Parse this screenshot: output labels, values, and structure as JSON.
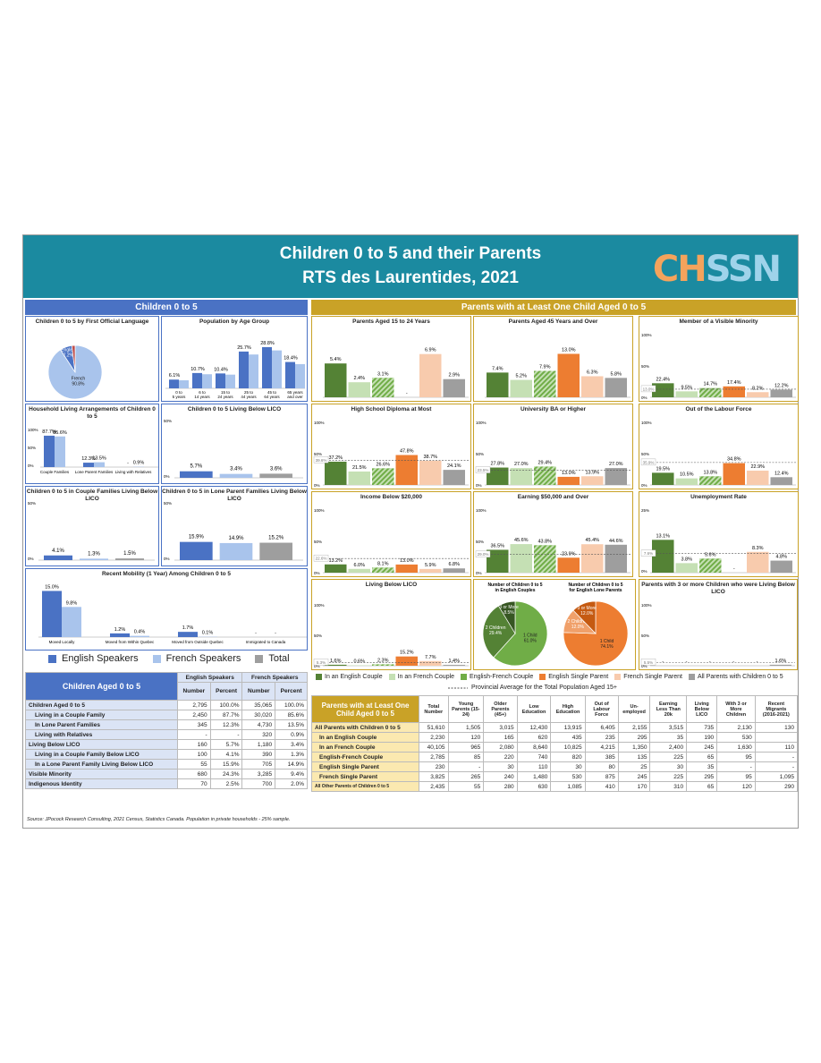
{
  "header": {
    "title": "Children 0 to 5 and their Parents",
    "subtitle": "RTS des Laurentides, 2021",
    "logo": "CHSSN"
  },
  "sections": {
    "left": "Children 0 to 5",
    "right": "Parents with at Least One Child Aged 0 to 5"
  },
  "colors": {
    "english": "#4a72c4",
    "french": "#a9c4ec",
    "total": "#9e9e9e",
    "eng_couple": "#548235",
    "fr_couple": "#c5e0b4",
    "ef_couple": "#70ad47",
    "eng_single": "#ed7d31",
    "fr_single": "#f8cbad",
    "all": "#9e9e9e"
  },
  "chart_data": [
    {
      "id": "lang",
      "type": "pie",
      "title": "Children 0 to 5 by First Official Language",
      "labels": [
        "French",
        "English",
        "Other"
      ],
      "values": [
        90.8,
        7.2,
        2.0
      ],
      "label_text": [
        "French\n90.8%",
        "English\n7.2%",
        "Other 2.0%"
      ]
    },
    {
      "id": "age",
      "type": "bar",
      "title": "Population by Age Group",
      "categories": [
        "0 to 5 years",
        "6 to 14 years",
        "15 to 24 years",
        "25 to 44 years",
        "45 to 64 years",
        "65 years and over"
      ],
      "values_eng": [
        6.1,
        10.7,
        10.4,
        25.7,
        28.8,
        18.4
      ]
    },
    {
      "id": "hla",
      "type": "bar",
      "title": "Household Living Arrangements of Children 0 to 5",
      "categories": [
        "Couple Families",
        "Lone Parent Families",
        "Living with Relatives"
      ],
      "series": [
        {
          "name": "English Speakers",
          "values": [
            87.7,
            12.3,
            null
          ],
          "labels": [
            "87.7%",
            "12.3%",
            "-"
          ]
        },
        {
          "name": "French Speakers",
          "values": [
            85.6,
            13.5,
            0.9
          ],
          "labels": [
            "85.6%",
            "13.5%",
            "0.9%"
          ]
        }
      ],
      "ticks": [
        "100%",
        "50%",
        "0%"
      ]
    },
    {
      "id": "lico",
      "type": "bar",
      "title": "Children 0 to 5 Living Below LICO",
      "values": [
        5.7,
        3.4,
        3.6
      ],
      "labels": [
        "5.7%",
        "3.4%",
        "3.6%"
      ],
      "ticks": [
        "50%",
        "0%"
      ]
    },
    {
      "id": "cf_lico",
      "type": "bar",
      "title": "Children 0 to 5 in Couple Families Living Below LICO",
      "values": [
        4.1,
        1.3,
        1.5
      ],
      "labels": [
        "4.1%",
        "1.3%",
        "1.5%"
      ],
      "ticks": [
        "50%",
        "0%"
      ]
    },
    {
      "id": "lp_lico",
      "type": "bar",
      "title": "Children 0 to 5 in Lone Parent Families Living Below LICO",
      "values": [
        15.9,
        14.9,
        15.2
      ],
      "labels": [
        "15.9%",
        "14.9%",
        "15.2%"
      ],
      "ticks": [
        "50%",
        "0%"
      ]
    },
    {
      "id": "mob",
      "type": "bar",
      "title": "Recent Mobility (1 Year) Among Children 0 to 5",
      "categories": [
        "Moved Locally",
        "Moved from Within Quebec",
        "Moved from Outside Quebec",
        "Immigrated to Canada"
      ],
      "series": [
        {
          "name": "English Speakers",
          "values": [
            15.0,
            1.2,
            1.7,
            null
          ],
          "labels": [
            "15.0%",
            "1.2%",
            "1.7%",
            "-"
          ]
        },
        {
          "name": "French Speakers",
          "values": [
            9.8,
            0.4,
            0.1,
            null
          ],
          "labels": [
            "9.8%",
            "0.4%",
            "0.1%",
            "-"
          ]
        }
      ]
    }
  ],
  "parent_charts": [
    {
      "title": "Parents Aged 15 to 24 Years",
      "values": [
        5.4,
        2.4,
        3.1,
        null,
        6.9,
        2.9
      ],
      "labels": [
        "5.4%",
        "2.4%",
        "3.1%",
        "-",
        "6.9%",
        "2.9%"
      ],
      "max": 8,
      "ticks": [],
      "avg": null
    },
    {
      "title": "Parents Aged 45 Years and Over",
      "values": [
        7.4,
        5.2,
        7.9,
        13.0,
        6.3,
        5.8
      ],
      "labels": [
        "7.4%",
        "5.2%",
        "7.9%",
        "13.0%",
        "6.3%",
        "5.8%"
      ],
      "max": 15,
      "ticks": [],
      "avg": null
    },
    {
      "title": "Member of a Visible Minority",
      "values": [
        22.4,
        9.5,
        14.7,
        17.4,
        8.2,
        12.2
      ],
      "labels": [
        "22.4%",
        "9.5%",
        "14.7%",
        "17.4%",
        "8.2%",
        "12.2%"
      ],
      "max": 100,
      "ticks": [
        "100%",
        "50%",
        "0%"
      ],
      "avg": 13.0,
      "avg_label": "13.0%"
    },
    {
      "title": "High School Diploma at Most",
      "values": [
        37.2,
        21.5,
        26.6,
        47.8,
        38.7,
        24.1
      ],
      "labels": [
        "37.2%",
        "21.5%",
        "26.6%",
        "47.8%",
        "38.7%",
        "24.1%"
      ],
      "max": 100,
      "ticks": [
        "100%",
        "50%",
        "0%"
      ],
      "avg": 39.6,
      "avg_label": "39.6%"
    },
    {
      "title": "University BA or Higher",
      "values": [
        27.8,
        27.0,
        29.4,
        13.0,
        13.9,
        27.0
      ],
      "labels": [
        "27.8%",
        "27.0%",
        "29.4%",
        "13.0%",
        "13.9%",
        "27.0%"
      ],
      "max": 100,
      "ticks": [
        "100%",
        "50%",
        "0%"
      ],
      "avg": 23.5,
      "avg_label": "23.5%"
    },
    {
      "title": "Out of the Labour Force",
      "values": [
        19.5,
        10.5,
        13.8,
        34.8,
        22.9,
        12.4
      ],
      "labels": [
        "19.5%",
        "10.5%",
        "13.8%",
        "34.8%",
        "22.9%",
        "12.4%"
      ],
      "max": 100,
      "ticks": [
        "100%",
        "50%",
        "0%"
      ],
      "avg": 35.9,
      "avg_label": "35.9%"
    },
    {
      "title": "Income Below $20,000",
      "values": [
        13.2,
        6.0,
        8.1,
        13.0,
        5.9,
        6.8
      ],
      "labels": [
        "13.2%",
        "6.0%",
        "8.1%",
        "13.0%",
        "5.9%",
        "6.8%"
      ],
      "max": 100,
      "ticks": [
        "100%",
        "50%",
        "0%"
      ],
      "avg": 22.6,
      "avg_label": "22.6%"
    },
    {
      "title": "Earning $50,000 and Over",
      "values": [
        36.5,
        45.6,
        43.8,
        23.9,
        45.4,
        44.6
      ],
      "labels": [
        "36.5%",
        "45.6%",
        "43.8%",
        "23.9%",
        "45.4%",
        "44.6%"
      ],
      "max": 100,
      "ticks": [
        "100%",
        "50%",
        "0%"
      ],
      "avg": 29.0,
      "avg_label": "29.0%"
    },
    {
      "title": "Unemployment Rate",
      "values": [
        13.1,
        3.8,
        5.6,
        null,
        8.3,
        4.8
      ],
      "labels": [
        "13.1%",
        "3.8%",
        "5.6%",
        "-",
        "8.3%",
        "4.8%"
      ],
      "max": 25,
      "ticks": [
        "25%",
        "0%"
      ],
      "avg": 7.6,
      "avg_label": "7.6%"
    },
    {
      "title": "Living Below LICO",
      "values": [
        1.6,
        0.6,
        2.3,
        15.2,
        7.7,
        1.4
      ],
      "labels": [
        "1.6%",
        "0.6%",
        "2.3%",
        "15.2%",
        "7.7%",
        "1.4%"
      ],
      "max": 100,
      "ticks": [
        "100%",
        "50%",
        "0%"
      ],
      "avg": 5.3,
      "avg_label": "5.3%"
    },
    {
      "title": "Parents with 3 or more Children who were Living Below LICO",
      "values": [
        null,
        null,
        null,
        null,
        null,
        1.6
      ],
      "labels": [
        "-",
        "-",
        "-",
        "-",
        "-",
        "1.6%"
      ],
      "max": 100,
      "ticks": [
        "100%",
        "50%",
        "0%"
      ],
      "avg": 5.5,
      "avg_label": "5.5%"
    }
  ],
  "pies2": [
    {
      "title": "Number of Children 0 to 5 in English Couples",
      "values": [
        61.0,
        29.4,
        8.5
      ],
      "labels": [
        "1 Child\n61.0%",
        "2 Children\n29.4%",
        "3 or More\n8.5%"
      ]
    },
    {
      "title": "Number of Children 0 to 5 for English Lone Parents",
      "values": [
        74.1,
        12.0,
        12.0
      ],
      "labels": [
        "1 Child\n74.1%",
        "2 Children\n12.0%",
        "3 or More\n12.0%"
      ]
    }
  ],
  "legend_left": [
    "English Speakers",
    "French Speakers",
    "Total"
  ],
  "legend_right": [
    "In an English Couple",
    "In an French Couple",
    "English-French Couple",
    "English Single Parent",
    "French Single Parent",
    "All Parents with Children 0 to 5"
  ],
  "legend_avg": "Provincial Average for the Total Population Aged 15+",
  "table_left": {
    "title": "Children Aged 0 to 5",
    "groups": [
      "English Speakers",
      "French Speakers"
    ],
    "cols": [
      "Number",
      "Percent",
      "Number",
      "Percent"
    ],
    "rows": [
      [
        "Children Aged 0 to 5",
        "2,795",
        "100.0%",
        "35,065",
        "100.0%"
      ],
      [
        "Living in a Couple Family",
        "2,450",
        "87.7%",
        "30,020",
        "85.6%"
      ],
      [
        "In Lone Parent Families",
        "345",
        "12.3%",
        "4,730",
        "13.5%"
      ],
      [
        "Living with Relatives",
        "-",
        "-",
        "320",
        "0.9%"
      ],
      [
        "Living Below LICO",
        "160",
        "5.7%",
        "1,180",
        "3.4%"
      ],
      [
        "Living in a Couple Family Below LICO",
        "100",
        "4.1%",
        "390",
        "1.3%"
      ],
      [
        "In a Lone Parent Family Living Below LICO",
        "55",
        "15.9%",
        "705",
        "14.9%"
      ],
      [
        "Visible Minority",
        "680",
        "24.3%",
        "3,285",
        "9.4%"
      ],
      [
        "Indigenous Identity",
        "70",
        "2.5%",
        "700",
        "2.0%"
      ]
    ]
  },
  "table_right": {
    "title": "Parents with at Least One Child Aged 0 to 5",
    "cols": [
      "Total Number",
      "Young Parents (15-24)",
      "Older Parents (45+)",
      "Low Education",
      "High Education",
      "Out of Labour Force",
      "Un-employed",
      "Earning Less Than 20k",
      "Living Below LICO",
      "With 3 or More Children",
      "Recent Migrants (2016-2021)"
    ],
    "rows": [
      [
        "All Parents with Children 0 to 5",
        "51,610",
        "1,505",
        "3,015",
        "12,430",
        "13,915",
        "6,405",
        "2,155",
        "3,515",
        "735",
        "2,130",
        "130"
      ],
      [
        "In an English Couple",
        "2,230",
        "120",
        "165",
        "620",
        "435",
        "235",
        "295",
        "35",
        "190",
        "530",
        ""
      ],
      [
        "In an French Couple",
        "40,105",
        "965",
        "2,080",
        "8,640",
        "10,825",
        "4,215",
        "1,350",
        "2,400",
        "245",
        "1,630",
        "110"
      ],
      [
        "English-French Couple",
        "2,785",
        "85",
        "220",
        "740",
        "820",
        "385",
        "135",
        "225",
        "65",
        "95",
        "-"
      ],
      [
        "English Single Parent",
        "230",
        "-",
        "30",
        "110",
        "30",
        "80",
        "25",
        "30",
        "35",
        "-",
        "-"
      ],
      [
        "French Single Parent",
        "3,825",
        "265",
        "240",
        "1,480",
        "530",
        "875",
        "245",
        "225",
        "295",
        "95",
        "1,095"
      ],
      [
        "All Other Parents of Children 0 to 5",
        "2,435",
        "55",
        "280",
        "630",
        "1,085",
        "410",
        "170",
        "310",
        "65",
        "120",
        "290"
      ]
    ]
  },
  "source": "Source: JPocock Research Consulting, 2021 Census, Statistics Canada. Population in private households - 25% sample."
}
